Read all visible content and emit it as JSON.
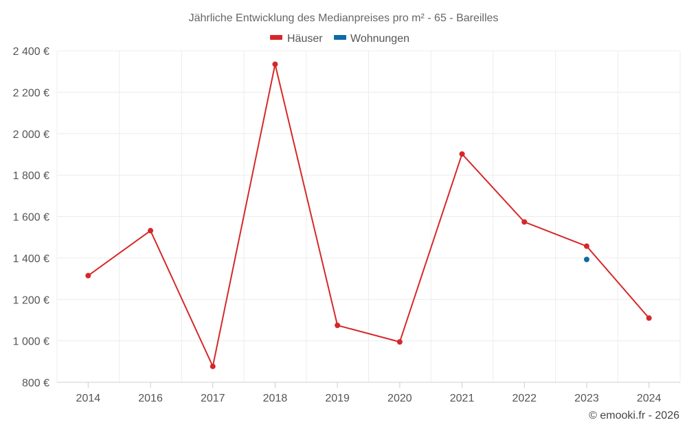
{
  "chart_data": {
    "type": "line",
    "title": "Jährliche Entwicklung des Medianpreises pro m² - 65 - Bareilles",
    "categories": [
      "2014",
      "2016",
      "2017",
      "2018",
      "2019",
      "2020",
      "2021",
      "2022",
      "2023",
      "2024"
    ],
    "ylim": [
      800,
      2400
    ],
    "yticks": [
      800,
      1000,
      1200,
      1400,
      1600,
      1800,
      2000,
      2200,
      2400
    ],
    "ytick_labels": [
      "800 €",
      "1 000 €",
      "1 200 €",
      "1 400 €",
      "1 600 €",
      "1 800 €",
      "2 000 €",
      "2 200 €",
      "2 400 €"
    ],
    "grid": true,
    "legend_position": "top-center",
    "series": [
      {
        "name": "Häuser",
        "color": "#d62728",
        "values": [
          1315,
          1532,
          877,
          2335,
          1075,
          995,
          1902,
          1574,
          1457,
          1110
        ]
      },
      {
        "name": "Wohnungen",
        "color": "#0e6aa8",
        "values": [
          null,
          null,
          null,
          null,
          null,
          null,
          null,
          null,
          1393,
          null
        ]
      }
    ]
  },
  "footer": {
    "credit": "© emooki.fr - 2026"
  }
}
